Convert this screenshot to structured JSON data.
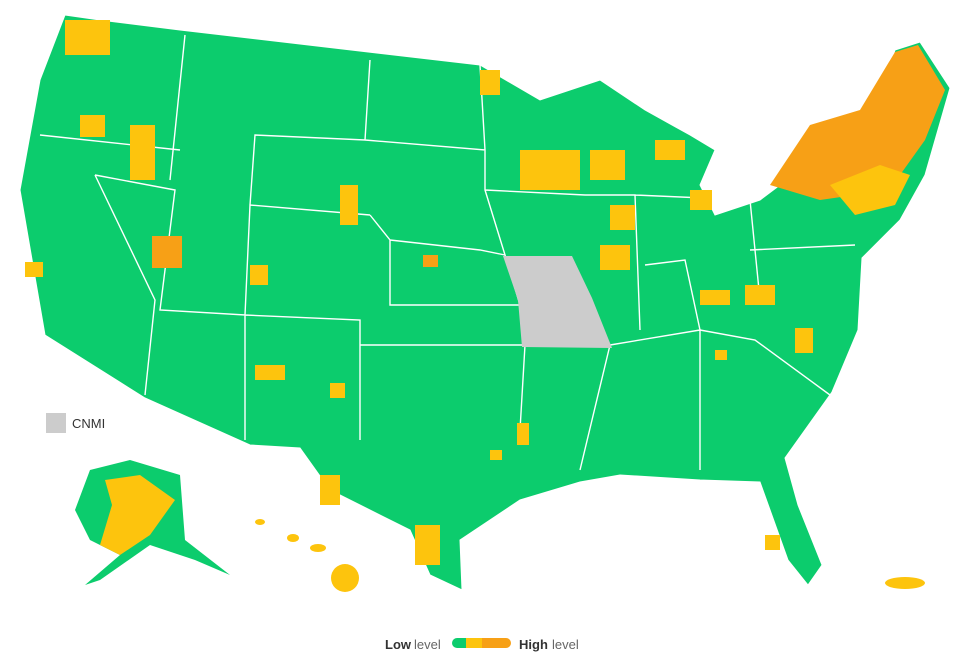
{
  "inset_label": "CNMI",
  "legend": {
    "low": "Low",
    "low_suffix": "level",
    "high": "High",
    "high_suffix": "level"
  }
}
